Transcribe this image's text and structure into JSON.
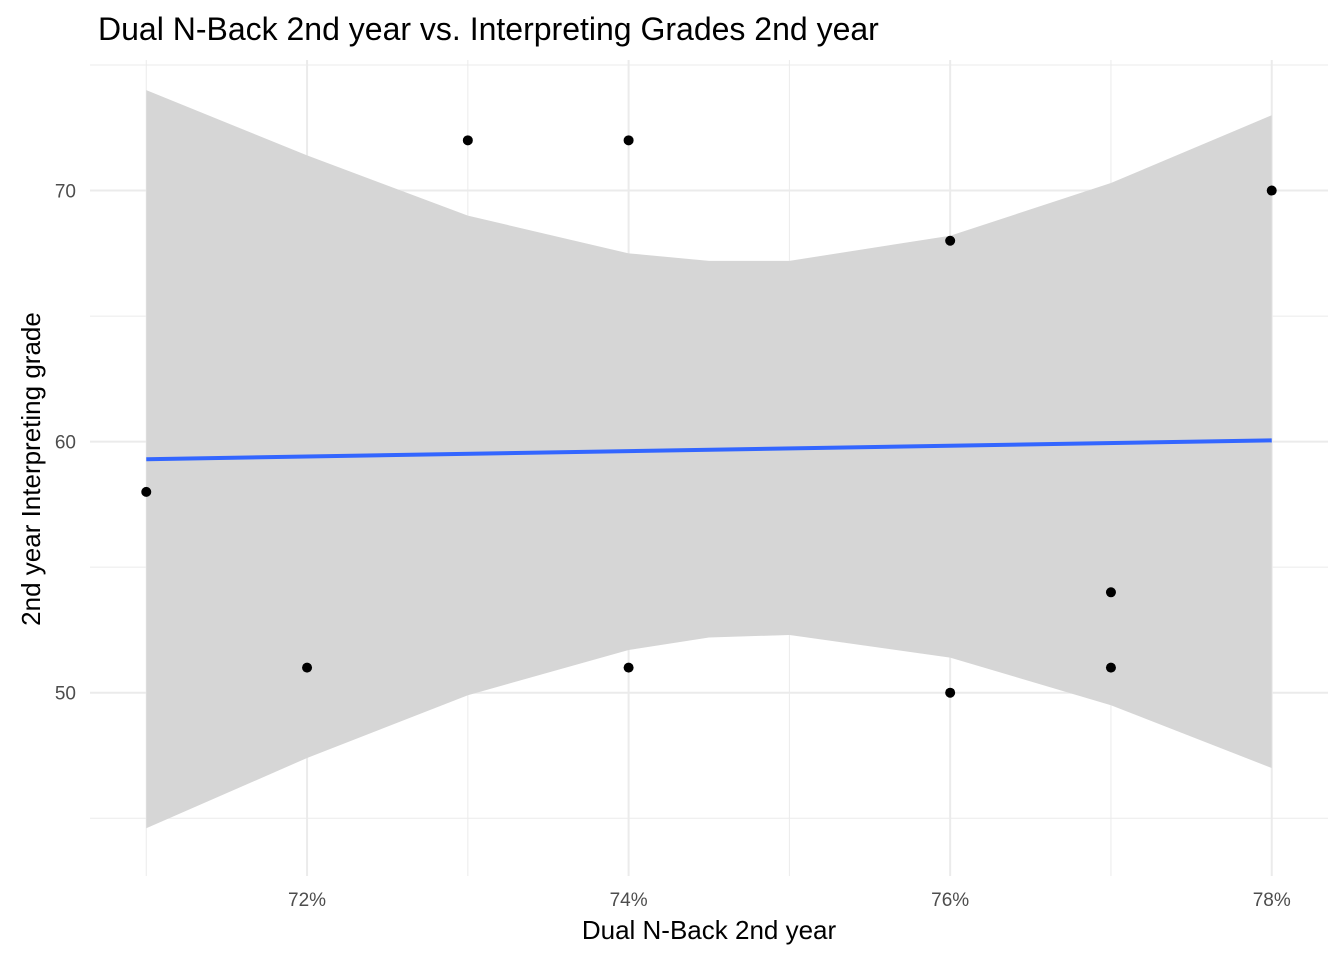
{
  "chart_data": {
    "type": "scatter",
    "title": "Dual N-Back 2nd year vs. Interpreting Grades 2nd year",
    "xlabel": "Dual N-Back 2nd year",
    "ylabel": "2nd year Interpreting grade",
    "xlim": [
      0.7065,
      0.7835
    ],
    "ylim": [
      42.7,
      75.2
    ],
    "x_ticks": [
      0.72,
      0.74,
      0.76,
      0.78
    ],
    "x_tick_labels": [
      "72%",
      "74%",
      "76%",
      "78%"
    ],
    "y_ticks": [
      50,
      60,
      70
    ],
    "y_tick_labels": [
      "50",
      "60",
      "70"
    ],
    "grid": true,
    "points": [
      {
        "x": 0.71,
        "y": 58
      },
      {
        "x": 0.72,
        "y": 51
      },
      {
        "x": 0.73,
        "y": 72
      },
      {
        "x": 0.74,
        "y": 72
      },
      {
        "x": 0.74,
        "y": 51
      },
      {
        "x": 0.76,
        "y": 68
      },
      {
        "x": 0.76,
        "y": 50
      },
      {
        "x": 0.77,
        "y": 54
      },
      {
        "x": 0.77,
        "y": 51
      },
      {
        "x": 0.78,
        "y": 70
      }
    ],
    "fit_line": {
      "method": "lm",
      "x": [
        0.71,
        0.78
      ],
      "y": [
        59.3,
        60.05
      ]
    },
    "confidence_band": {
      "x": [
        0.71,
        0.72,
        0.73,
        0.74,
        0.745,
        0.75,
        0.76,
        0.77,
        0.78
      ],
      "upper": [
        74.0,
        71.4,
        69.0,
        67.5,
        67.2,
        67.2,
        68.2,
        70.3,
        73.0
      ],
      "lower": [
        44.6,
        47.4,
        49.9,
        51.7,
        52.2,
        52.3,
        51.4,
        49.5,
        47.0
      ]
    },
    "colors": {
      "points": "#000000",
      "fit_line": "#3366FF",
      "band": "#d6d6d6",
      "grid": "#ebebeb"
    }
  }
}
